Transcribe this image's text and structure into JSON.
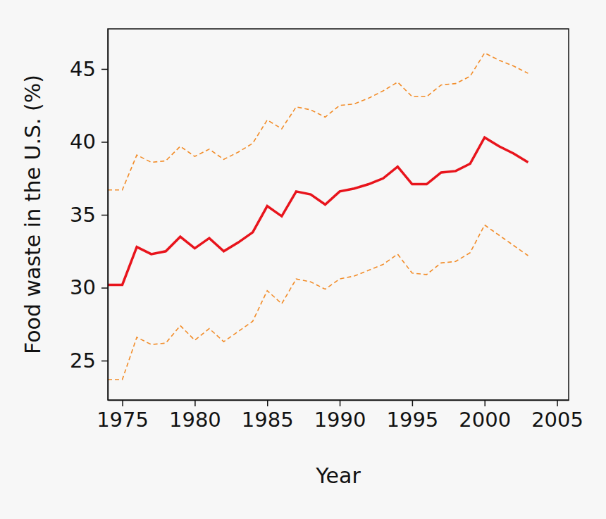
{
  "chart_data": {
    "type": "line",
    "x_label": "Year",
    "y_label": "Food waste in the U.S. (%)",
    "x": [
      1974,
      1975,
      1976,
      1977,
      1978,
      1979,
      1980,
      1981,
      1982,
      1983,
      1984,
      1985,
      1986,
      1987,
      1988,
      1989,
      1990,
      1991,
      1992,
      1993,
      1994,
      1995,
      1996,
      1997,
      1998,
      1999,
      2000,
      2001,
      2002,
      2003
    ],
    "series": [
      {
        "color": "#f28c28",
        "line_style": "dashed",
        "values": [
          36.7,
          36.7,
          39.1,
          38.6,
          38.7,
          39.7,
          39.0,
          39.5,
          38.8,
          39.3,
          39.9,
          41.5,
          40.9,
          42.4,
          42.2,
          41.7,
          42.5,
          42.6,
          43.0,
          43.5,
          44.1,
          43.1,
          43.1,
          43.9,
          44.0,
          44.5,
          46.1,
          45.6,
          45.2,
          44.7
        ]
      },
      {
        "color": "#e8141c",
        "line_style": "solid",
        "values": [
          30.2,
          30.2,
          32.8,
          32.3,
          32.5,
          33.5,
          32.7,
          33.4,
          32.5,
          33.1,
          33.8,
          35.6,
          34.9,
          36.6,
          36.4,
          35.7,
          36.6,
          36.8,
          37.1,
          37.5,
          38.3,
          37.1,
          37.1,
          37.9,
          38.0,
          38.5,
          40.3,
          39.7,
          39.2,
          38.6
        ]
      },
      {
        "color": "#f28c28",
        "line_style": "dashed",
        "values": [
          23.7,
          23.7,
          26.6,
          26.1,
          26.2,
          27.4,
          26.4,
          27.2,
          26.3,
          27.0,
          27.7,
          29.8,
          28.9,
          30.6,
          30.4,
          29.9,
          30.6,
          30.8,
          31.2,
          31.6,
          32.3,
          31.0,
          30.9,
          31.7,
          31.8,
          32.4,
          34.3,
          33.6,
          32.9,
          32.2
        ]
      }
    ],
    "xlim": [
      1974,
      2005.8
    ],
    "ylim": [
      22.3,
      47.75
    ],
    "xticks": [
      1975,
      1980,
      1985,
      1990,
      1995,
      2000,
      2005
    ],
    "yticks": [
      25,
      30,
      35,
      40,
      45
    ],
    "grid": false
  }
}
